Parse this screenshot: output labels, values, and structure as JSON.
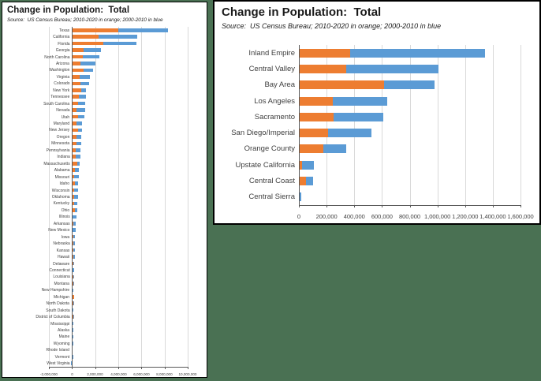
{
  "page": {
    "background_color": "#4a7153",
    "description_colors": {
      "orange_2010_2020": "#ED7D31",
      "blue_2000_2010": "#5B9BD5"
    }
  },
  "chart_data": [
    {
      "id": "states-population-change",
      "type": "bar",
      "stacked": true,
      "orientation": "horizontal",
      "title": "Change in Population:  Total",
      "source": "Source:  US Census Bureau; 2010-2020 in orange; 2000-2010 in blue",
      "legend_position": "none",
      "grid": true,
      "xlim": [
        -2000000,
        10000000
      ],
      "xticks": [
        -2000000,
        0,
        2000000,
        4000000,
        6000000,
        8000000,
        10000000
      ],
      "xtick_labels": [
        "-2,000,000",
        "0",
        "2,000,000",
        "4,000,000",
        "6,000,000",
        "8,000,000",
        "10,000,000"
      ],
      "categories": [
        "Texas",
        "California",
        "Florida",
        "Georgia",
        "North Carolina",
        "Arizona",
        "Washington",
        "Virginia",
        "Colorado",
        "New York",
        "Tennessee",
        "South Carolina",
        "Nevada",
        "Utah",
        "Maryland",
        "New Jersey",
        "Oregon",
        "Minnesota",
        "Pennsylvania",
        "Indiana",
        "Massachusetts",
        "Alabama",
        "Missouri",
        "Idaho",
        "Wisconsin",
        "Oklahoma",
        "Kentucky",
        "Ohio",
        "Illinois",
        "Arkansas",
        "New Mexico",
        "Iowa",
        "Nebraska",
        "Kansas",
        "Hawaii",
        "Delaware",
        "Connecticut",
        "Louisiana",
        "Montana",
        "New Hampshire",
        "Michigan",
        "North Dakota",
        "South Dakota",
        "District of Columbia",
        "Mississippi",
        "Alaska",
        "Maine",
        "Wyoming",
        "Rhode Island",
        "Vermont",
        "West Virginia"
      ],
      "series": [
        {
          "name": "2010-2020",
          "color": "#ED7D31",
          "values": [
            4000000,
            2284000,
            2737000,
            1024000,
            904000,
            759000,
            981000,
            630000,
            745000,
            823000,
            564000,
            493000,
            404000,
            508000,
            404000,
            497000,
            406000,
            403000,
            300000,
            302000,
            482000,
            245000,
            166000,
            272000,
            207000,
            208000,
            166000,
            263000,
            -18000,
            96000,
            58000,
            144000,
            135000,
            85000,
            95000,
            92000,
            32000,
            124000,
            95000,
            61000,
            194000,
            107000,
            72000,
            88000,
            -6000,
            23000,
            34000,
            13000,
            45000,
            17000,
            45000
          ]
        },
        {
          "name": "2000-2010",
          "color": "#5B9BD5",
          "values": [
            4294000,
            3382000,
            2819000,
            1501000,
            1486000,
            1261000,
            830000,
            923000,
            728000,
            402000,
            657000,
            613000,
            702000,
            531000,
            477000,
            378000,
            410000,
            384000,
            421000,
            403000,
            199000,
            333000,
            394000,
            274000,
            323000,
            301000,
            298000,
            183000,
            411000,
            243000,
            240000,
            120000,
            115000,
            165000,
            149000,
            114000,
            169000,
            64000,
            87000,
            81000,
            -55000,
            30000,
            59000,
            30000,
            123000,
            83000,
            53000,
            70000,
            4000,
            17000,
            -59000
          ]
        }
      ]
    },
    {
      "id": "california-regions-population-change",
      "type": "bar",
      "stacked": true,
      "orientation": "horizontal",
      "title": "Change in Population:  Total",
      "source": "Source:  US Census Bureau; 2010-2020 in orange; 2000-2010 in blue",
      "legend_position": "none",
      "grid": true,
      "xlim": [
        0,
        1600000
      ],
      "xticks": [
        0,
        200000,
        400000,
        600000,
        800000,
        1000000,
        1200000,
        1400000,
        1600000
      ],
      "xtick_labels": [
        "0",
        "200,000",
        "400,000",
        "600,000",
        "800,000",
        "1,000,000",
        "1,200,000",
        "1,400,000",
        "1,600,000"
      ],
      "categories": [
        "Inland Empire",
        "Central Valley",
        "Bay Area",
        "Los Angeles",
        "Sacramento",
        "San Diego/Imperial",
        "Orange County",
        "Upstate California",
        "Central Coast",
        "Central Sierra"
      ],
      "series": [
        {
          "name": "2010-2020",
          "color": "#ED7D31",
          "values": [
            370000,
            340000,
            613000,
            244000,
            253000,
            208000,
            177000,
            21000,
            51000,
            2000
          ]
        },
        {
          "name": "2000-2010",
          "color": "#5B9BD5",
          "values": [
            975000,
            670000,
            368000,
            392000,
            358000,
            314000,
            166000,
            88000,
            50000,
            13000
          ]
        }
      ]
    }
  ]
}
